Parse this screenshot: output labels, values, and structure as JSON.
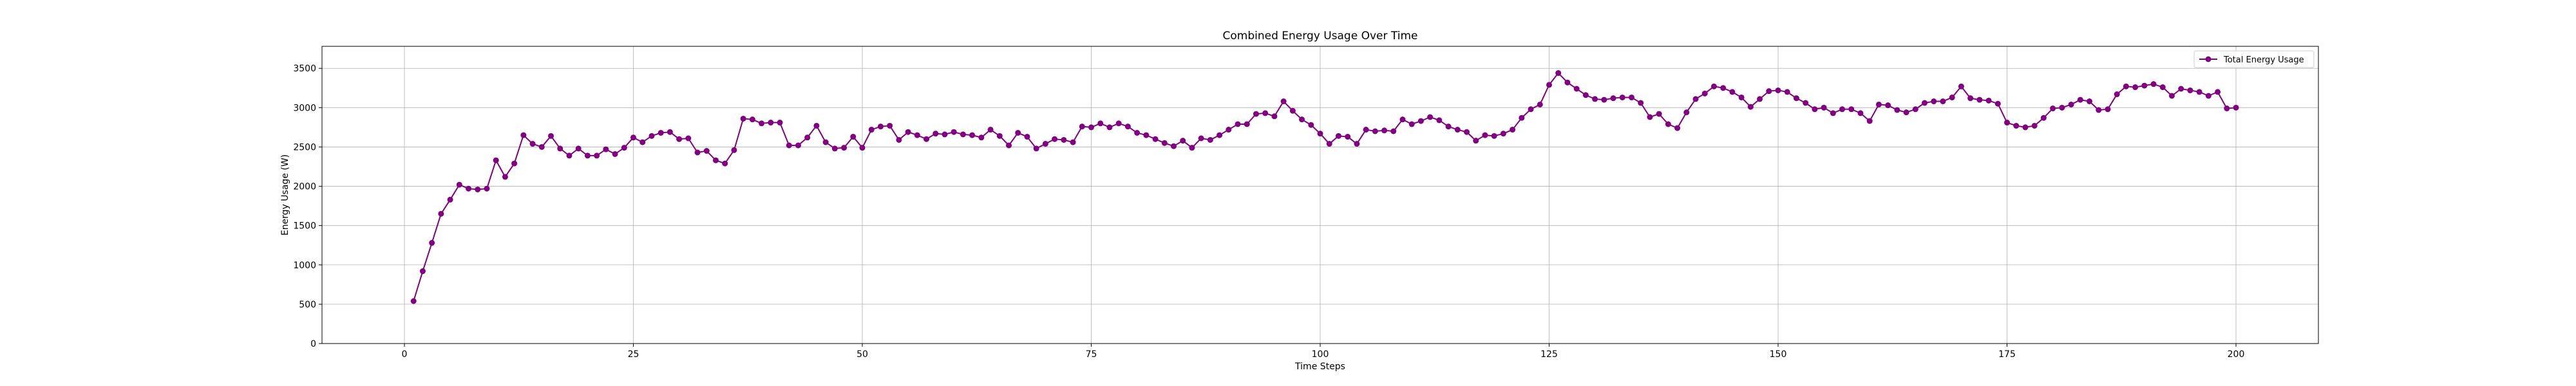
{
  "chart_data": {
    "type": "line",
    "title": "Combined Energy Usage Over Time",
    "xlabel": "Time Steps",
    "ylabel": "Energy Usage (W)",
    "xlim": [
      -9,
      209
    ],
    "ylim": [
      0,
      3780
    ],
    "xticks": [
      0,
      25,
      50,
      75,
      100,
      125,
      150,
      175,
      200
    ],
    "yticks": [
      0,
      500,
      1000,
      1500,
      2000,
      2500,
      3000,
      3500
    ],
    "grid": true,
    "legend_position": "top-right",
    "series": [
      {
        "name": "Total Energy Usage",
        "color": "#800080",
        "marker": "circle",
        "x": [
          1,
          2,
          3,
          4,
          5,
          6,
          7,
          8,
          9,
          10,
          11,
          12,
          13,
          14,
          15,
          16,
          17,
          18,
          19,
          20,
          21,
          22,
          23,
          24,
          25,
          26,
          27,
          28,
          29,
          30,
          31,
          32,
          33,
          34,
          35,
          36,
          37,
          38,
          39,
          40,
          41,
          42,
          43,
          44,
          45,
          46,
          47,
          48,
          49,
          50,
          51,
          52,
          53,
          54,
          55,
          56,
          57,
          58,
          59,
          60,
          61,
          62,
          63,
          64,
          65,
          66,
          67,
          68,
          69,
          70,
          71,
          72,
          73,
          74,
          75,
          76,
          77,
          78,
          79,
          80,
          81,
          82,
          83,
          84,
          85,
          86,
          87,
          88,
          89,
          90,
          91,
          92,
          93,
          94,
          95,
          96,
          97,
          98,
          99,
          100,
          101,
          102,
          103,
          104,
          105,
          106,
          107,
          108,
          109,
          110,
          111,
          112,
          113,
          114,
          115,
          116,
          117,
          118,
          119,
          120,
          121,
          122,
          123,
          124,
          125,
          126,
          127,
          128,
          129,
          130,
          131,
          132,
          133,
          134,
          135,
          136,
          137,
          138,
          139,
          140,
          141,
          142,
          143,
          144,
          145,
          146,
          147,
          148,
          149,
          150,
          151,
          152,
          153,
          154,
          155,
          156,
          157,
          158,
          159,
          160,
          161,
          162,
          163,
          164,
          165,
          166,
          167,
          168,
          169,
          170,
          171,
          172,
          173,
          174,
          175,
          176,
          177,
          178,
          179,
          180,
          181,
          182,
          183,
          184,
          185,
          186,
          187,
          188,
          189,
          190,
          191,
          192,
          193,
          194,
          195,
          196,
          197,
          198,
          199,
          200
        ],
        "values": [
          540,
          920,
          1280,
          1650,
          1830,
          2020,
          1970,
          1960,
          1970,
          2330,
          2120,
          2290,
          2650,
          2540,
          2500,
          2640,
          2480,
          2390,
          2480,
          2390,
          2390,
          2470,
          2410,
          2490,
          2620,
          2560,
          2640,
          2680,
          2690,
          2600,
          2610,
          2430,
          2450,
          2330,
          2290,
          2460,
          2860,
          2850,
          2800,
          2810,
          2810,
          2520,
          2520,
          2620,
          2770,
          2560,
          2480,
          2490,
          2630,
          2490,
          2720,
          2760,
          2770,
          2590,
          2690,
          2650,
          2600,
          2670,
          2660,
          2690,
          2660,
          2650,
          2620,
          2720,
          2640,
          2520,
          2680,
          2630,
          2480,
          2540,
          2600,
          2590,
          2560,
          2760,
          2750,
          2800,
          2750,
          2800,
          2760,
          2680,
          2650,
          2600,
          2550,
          2510,
          2580,
          2490,
          2610,
          2590,
          2650,
          2720,
          2790,
          2790,
          2920,
          2930,
          2890,
          3080,
          2960,
          2850,
          2780,
          2670,
          2540,
          2640,
          2630,
          2540,
          2720,
          2700,
          2710,
          2700,
          2850,
          2790,
          2830,
          2880,
          2840,
          2760,
          2720,
          2690,
          2580,
          2650,
          2640,
          2670,
          2720,
          2870,
          2980,
          3040,
          3290,
          3440,
          3320,
          3240,
          3160,
          3110,
          3100,
          3120,
          3130,
          3130,
          3060,
          2880,
          2920,
          2790,
          2740,
          2940,
          3110,
          3180,
          3270,
          3250,
          3200,
          3130,
          3010,
          3110,
          3210,
          3220,
          3200,
          3120,
          3060,
          2980,
          3000,
          2930,
          2980,
          2980,
          2930,
          2830,
          3040,
          3030,
          2970,
          2940,
          2980,
          3060,
          3080,
          3080,
          3130,
          3270,
          3120,
          3100,
          3090,
          3050,
          2810,
          2770,
          2750,
          2770,
          2870,
          2990,
          3000,
          3040,
          3100,
          3080,
          2970,
          2980,
          3170,
          3270,
          3260,
          3280,
          3300,
          3260,
          3150,
          3240,
          3220,
          3200,
          3150,
          3200,
          2990,
          3000
        ]
      }
    ]
  }
}
